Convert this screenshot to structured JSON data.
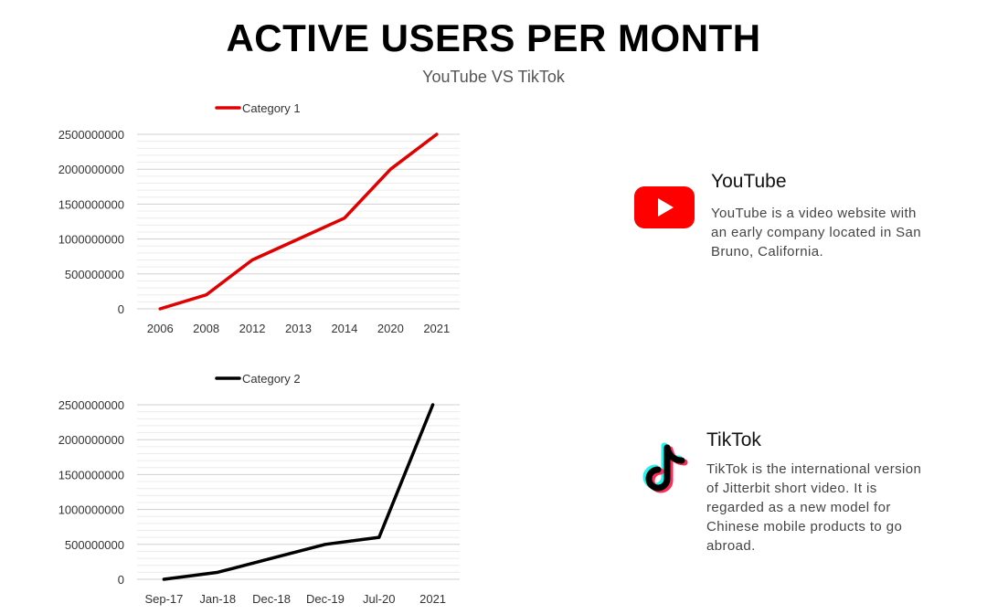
{
  "title": "ACTIVE USERS PER MONTH",
  "subtitle": "YouTube VS TikTok",
  "chart_data": [
    {
      "type": "line",
      "legend": "Category 1",
      "color": "#e00000",
      "categories": [
        "2006",
        "2008",
        "2012",
        "2013",
        "2014",
        "2020",
        "2021"
      ],
      "values": [
        0,
        200000000,
        700000000,
        1000000000,
        1300000000,
        2000000000,
        2500000000
      ],
      "yticks": [
        "0",
        "500000000",
        "1000000000",
        "1500000000",
        "2000000000",
        "2500000000"
      ],
      "ylim": [
        0,
        2500000000
      ],
      "legend_position": "top"
    },
    {
      "type": "line",
      "legend": "Category 2",
      "color": "#000000",
      "categories": [
        "Sep-17",
        "Jan-18",
        "Dec-18",
        "Dec-19",
        "Jul-20",
        "2021"
      ],
      "values": [
        0,
        100000000,
        300000000,
        500000000,
        600000000,
        2500000000
      ],
      "yticks": [
        "0",
        "500000000",
        "1000000000",
        "1500000000",
        "2000000000",
        "2500000000"
      ],
      "ylim": [
        0,
        2500000000
      ],
      "legend_position": "top"
    }
  ],
  "youtube": {
    "name": "YouTube",
    "description": "YouTube is a video website with an early company located in San Bruno, California.",
    "color": "#ff0000"
  },
  "tiktok": {
    "name": "TikTok",
    "description": "TikTok is the international version of Jitterbit short video. It is regarded as a new model for Chinese mobile products to go abroad."
  }
}
